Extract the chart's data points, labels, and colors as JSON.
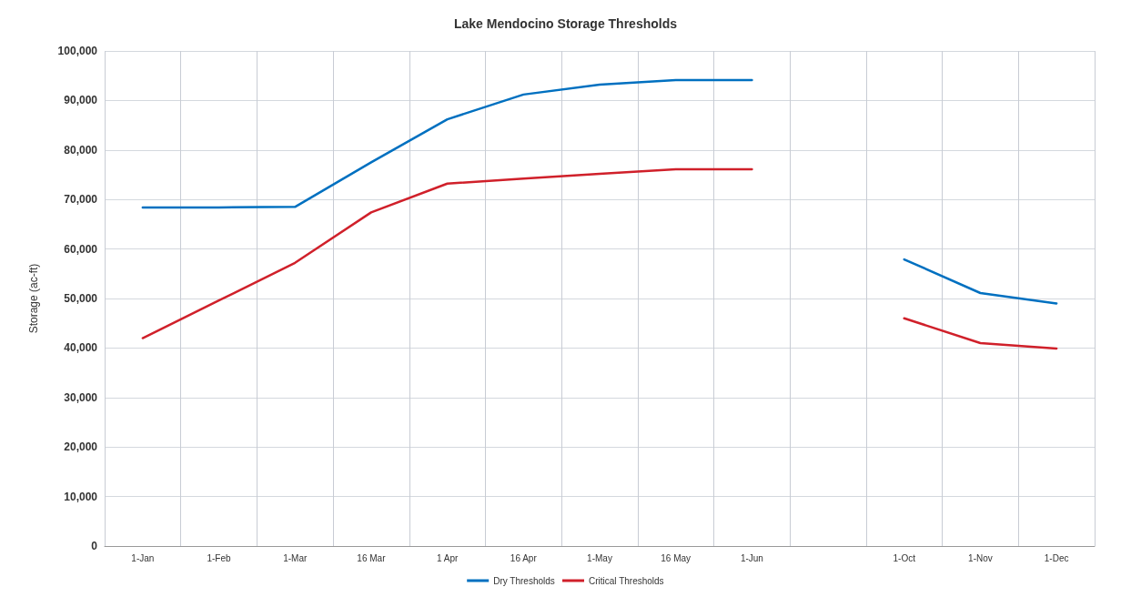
{
  "chart_data": {
    "type": "line",
    "title": "Lake Mendocino Storage Thresholds",
    "ylabel": "Storage (ac-ft)",
    "categories": [
      "1-Jan",
      "1-Feb",
      "1-Mar",
      "16 Mar",
      "1 Apr",
      "16 Apr",
      "1-May",
      "16 May",
      "1-Jun",
      null,
      "1-Oct",
      "1-Nov",
      "1-Dec"
    ],
    "series": [
      {
        "name": "Dry Thresholds",
        "color": "#0070c0",
        "values": [
          68400,
          68400,
          68500,
          77500,
          86200,
          91200,
          93200,
          94100,
          94100,
          null,
          57900,
          51100,
          49000
        ]
      },
      {
        "name": "Critical Thresholds",
        "color": "#d0202a",
        "values": [
          42000,
          49600,
          57200,
          67400,
          73200,
          74200,
          75200,
          76100,
          76100,
          null,
          46000,
          41000,
          39900
        ]
      }
    ],
    "ylim": [
      0,
      100000
    ],
    "yticks": [
      0,
      {
        "value": 10000,
        "label": "10,000"
      },
      {
        "value": 20000,
        "label": "20,000"
      },
      {
        "value": 30000,
        "label": "30,000"
      },
      {
        "value": 40000,
        "label": "40,000"
      },
      {
        "value": 50000,
        "label": "50,000"
      },
      {
        "value": 60000,
        "label": "60,000"
      },
      {
        "value": 70000,
        "label": "70,000"
      },
      {
        "value": 80000,
        "label": "80,000"
      },
      {
        "value": 90000,
        "label": "90,000"
      },
      {
        "value": 100000,
        "label": "100,000"
      }
    ],
    "grid": true,
    "legend": "bottom",
    "marker": "none",
    "line_style": "solid"
  }
}
